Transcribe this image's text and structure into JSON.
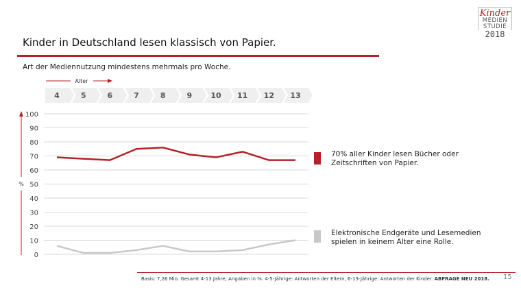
{
  "title": "Kinder in Deutschland lesen klassisch von Papier.",
  "subtitle": "Art der Mediennutzung mindestens mehrmals pro Woche.",
  "logo": {
    "line1": "Kinder",
    "line2": "MEDIEN",
    "line3": "STUDIE",
    "year": "2018"
  },
  "notes": {
    "red": [
      "70% aller Kinder lesen Bücher oder",
      "Zeitschriften von Papier."
    ],
    "gray": [
      "Elektronische Endgeräte und Lesemedien",
      "spielen in keinem Alter eine Rolle."
    ]
  },
  "footer": {
    "text": "Basis: 7,26 Mio. Gesamt 4-13 Jahre, Angaben in %. 4-5-Jährige: Antworten der Eltern, 6-13-Jährige: Antworten der Kinder. ",
    "bold": "ABFRAGE NEU 2018."
  },
  "page_number": "15",
  "colors": {
    "accent": "#b52126",
    "gray_series": "#c8c8c8",
    "chevron": "#efefef"
  },
  "chart_data": {
    "type": "line",
    "xlabel": "Alter",
    "ylabel": "%",
    "categories": [
      "4",
      "5",
      "6",
      "7",
      "8",
      "9",
      "10",
      "11",
      "12",
      "13"
    ],
    "yticks": [
      0,
      10,
      20,
      30,
      40,
      50,
      60,
      70,
      80,
      90,
      100
    ],
    "ylim": [
      0,
      100
    ],
    "grid": true,
    "series": [
      {
        "values": [
          69,
          68,
          67,
          75,
          76,
          71,
          69,
          73,
          67,
          67
        ],
        "color": "#b52126"
      },
      {
        "values": [
          6,
          1,
          1,
          3,
          6,
          2,
          2,
          3,
          7,
          10
        ],
        "color": "#c8c8c8"
      }
    ]
  }
}
